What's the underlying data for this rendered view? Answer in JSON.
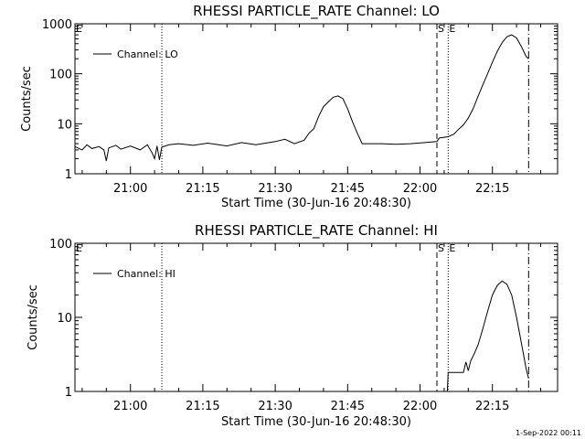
{
  "footer": {
    "timestamp": "1-Sep-2022 00:11"
  },
  "chart_data": [
    {
      "type": "line",
      "title": "RHESSI PARTICLE_RATE Channel: LO",
      "xlabel": "Start Time (30-Jun-16 20:48:30)",
      "ylabel": "Counts/sec",
      "y_scale": "log",
      "xlim": [
        "20:48:30",
        "22:28:30"
      ],
      "ylim": [
        1,
        1000
      ],
      "x_ticks": [
        "21:00",
        "21:15",
        "21:30",
        "21:45",
        "22:00",
        "22:15"
      ],
      "y_ticks": [
        "1",
        "10",
        "100",
        "1000"
      ],
      "legend": {
        "position": "top-left",
        "entries": [
          "Channel: LO"
        ]
      },
      "markers": [
        {
          "label": "E",
          "time": "20:48:30",
          "style": "none"
        },
        {
          "label": "",
          "time": "21:06:30",
          "style": "dotted"
        },
        {
          "label": "S",
          "time": "22:03:30",
          "style": "dashed"
        },
        {
          "label": "E",
          "time": "22:05:50",
          "style": "dotted"
        },
        {
          "label": "",
          "time": "22:22:30",
          "style": "dash-dot"
        }
      ],
      "series": [
        {
          "name": "Channel: LO",
          "points": [
            [
              "20:48:30",
              3.5
            ],
            [
              "20:50:00",
              3.0
            ],
            [
              "20:51:00",
              3.8
            ],
            [
              "20:52:00",
              3.2
            ],
            [
              "20:53:30",
              3.5
            ],
            [
              "20:54:30",
              3.0
            ],
            [
              "20:55:00",
              1.8
            ],
            [
              "20:55:30",
              3.3
            ],
            [
              "20:57:00",
              3.7
            ],
            [
              "20:58:00",
              3.1
            ],
            [
              "21:00:00",
              3.6
            ],
            [
              "21:02:00",
              3.0
            ],
            [
              "21:03:30",
              3.8
            ],
            [
              "21:04:30",
              2.6
            ],
            [
              "21:05:00",
              2.0
            ],
            [
              "21:05:30",
              3.6
            ],
            [
              "21:06:00",
              1.9
            ],
            [
              "21:06:30",
              3.4
            ],
            [
              "21:08:00",
              3.8
            ],
            [
              "21:10:00",
              4.0
            ],
            [
              "21:13:00",
              3.7
            ],
            [
              "21:16:00",
              4.1
            ],
            [
              "21:20:00",
              3.6
            ],
            [
              "21:23:00",
              4.2
            ],
            [
              "21:26:00",
              3.8
            ],
            [
              "21:30:00",
              4.4
            ],
            [
              "21:32:00",
              4.9
            ],
            [
              "21:34:00",
              4.0
            ],
            [
              "21:36:00",
              4.7
            ],
            [
              "21:37:00",
              6.5
            ],
            [
              "21:38:00",
              8.0
            ],
            [
              "21:39:00",
              14.0
            ],
            [
              "21:40:00",
              22.0
            ],
            [
              "21:42:00",
              34.0
            ],
            [
              "21:43:00",
              36.0
            ],
            [
              "21:44:00",
              32.0
            ],
            [
              "21:45:00",
              20.0
            ],
            [
              "21:46:00",
              11.0
            ],
            [
              "21:47:00",
              6.5
            ],
            [
              "21:48:00",
              4.0
            ],
            [
              "21:52:00",
              4.0
            ],
            [
              "21:55:00",
              3.9
            ],
            [
              "21:58:00",
              4.0
            ],
            [
              "22:01:00",
              4.2
            ],
            [
              "22:03:30",
              4.4
            ],
            [
              "22:04:00",
              5.2
            ],
            [
              "22:05:50",
              5.5
            ],
            [
              "22:07:00",
              6.2
            ],
            [
              "22:08:00",
              7.8
            ],
            [
              "22:09:00",
              9.5
            ],
            [
              "22:10:00",
              13.0
            ],
            [
              "22:11:00",
              20.0
            ],
            [
              "22:12:00",
              35.0
            ],
            [
              "22:13:00",
              60.0
            ],
            [
              "22:14:00",
              100.0
            ],
            [
              "22:15:00",
              170.0
            ],
            [
              "22:16:00",
              280.0
            ],
            [
              "22:17:00",
              420.0
            ],
            [
              "22:18:00",
              550.0
            ],
            [
              "22:19:00",
              600.0
            ],
            [
              "22:20:00",
              520.0
            ],
            [
              "22:21:00",
              350.0
            ],
            [
              "22:22:00",
              220.0
            ],
            [
              "22:22:30",
              200.0
            ]
          ]
        }
      ]
    },
    {
      "type": "line",
      "title": "RHESSI PARTICLE_RATE Channel: HI",
      "xlabel": "Start Time (30-Jun-16 20:48:30)",
      "ylabel": "Counts/sec",
      "y_scale": "log",
      "xlim": [
        "20:48:30",
        "22:28:30"
      ],
      "ylim": [
        1,
        100
      ],
      "x_ticks": [
        "21:00",
        "21:15",
        "21:30",
        "21:45",
        "22:00",
        "22:15"
      ],
      "y_ticks": [
        "1",
        "10",
        "100"
      ],
      "legend": {
        "position": "top-left",
        "entries": [
          "Channel: HI"
        ]
      },
      "markers": [
        {
          "label": "E",
          "time": "20:48:30",
          "style": "none"
        },
        {
          "label": "",
          "time": "21:06:30",
          "style": "dotted"
        },
        {
          "label": "S",
          "time": "22:03:30",
          "style": "dashed"
        },
        {
          "label": "E",
          "time": "22:05:50",
          "style": "dotted"
        },
        {
          "label": "",
          "time": "22:22:30",
          "style": "dash-dot"
        }
      ],
      "series": [
        {
          "name": "Channel: HI",
          "points": [
            [
              "22:05:40",
              1.0
            ],
            [
              "22:05:50",
              1.8
            ],
            [
              "22:08:00",
              1.8
            ],
            [
              "22:09:00",
              1.8
            ],
            [
              "22:09:30",
              2.5
            ],
            [
              "22:10:00",
              1.9
            ],
            [
              "22:10:30",
              2.6
            ],
            [
              "22:11:00",
              3.0
            ],
            [
              "22:12:00",
              4.2
            ],
            [
              "22:13:00",
              7.0
            ],
            [
              "22:14:00",
              12.0
            ],
            [
              "22:15:00",
              20.0
            ],
            [
              "22:16:00",
              27.0
            ],
            [
              "22:17:00",
              31.0
            ],
            [
              "22:18:00",
              28.0
            ],
            [
              "22:19:00",
              20.0
            ],
            [
              "22:20:00",
              10.0
            ],
            [
              "22:21:00",
              4.5
            ],
            [
              "22:22:00",
              2.0
            ],
            [
              "22:22:30",
              1.5
            ]
          ]
        }
      ]
    }
  ]
}
